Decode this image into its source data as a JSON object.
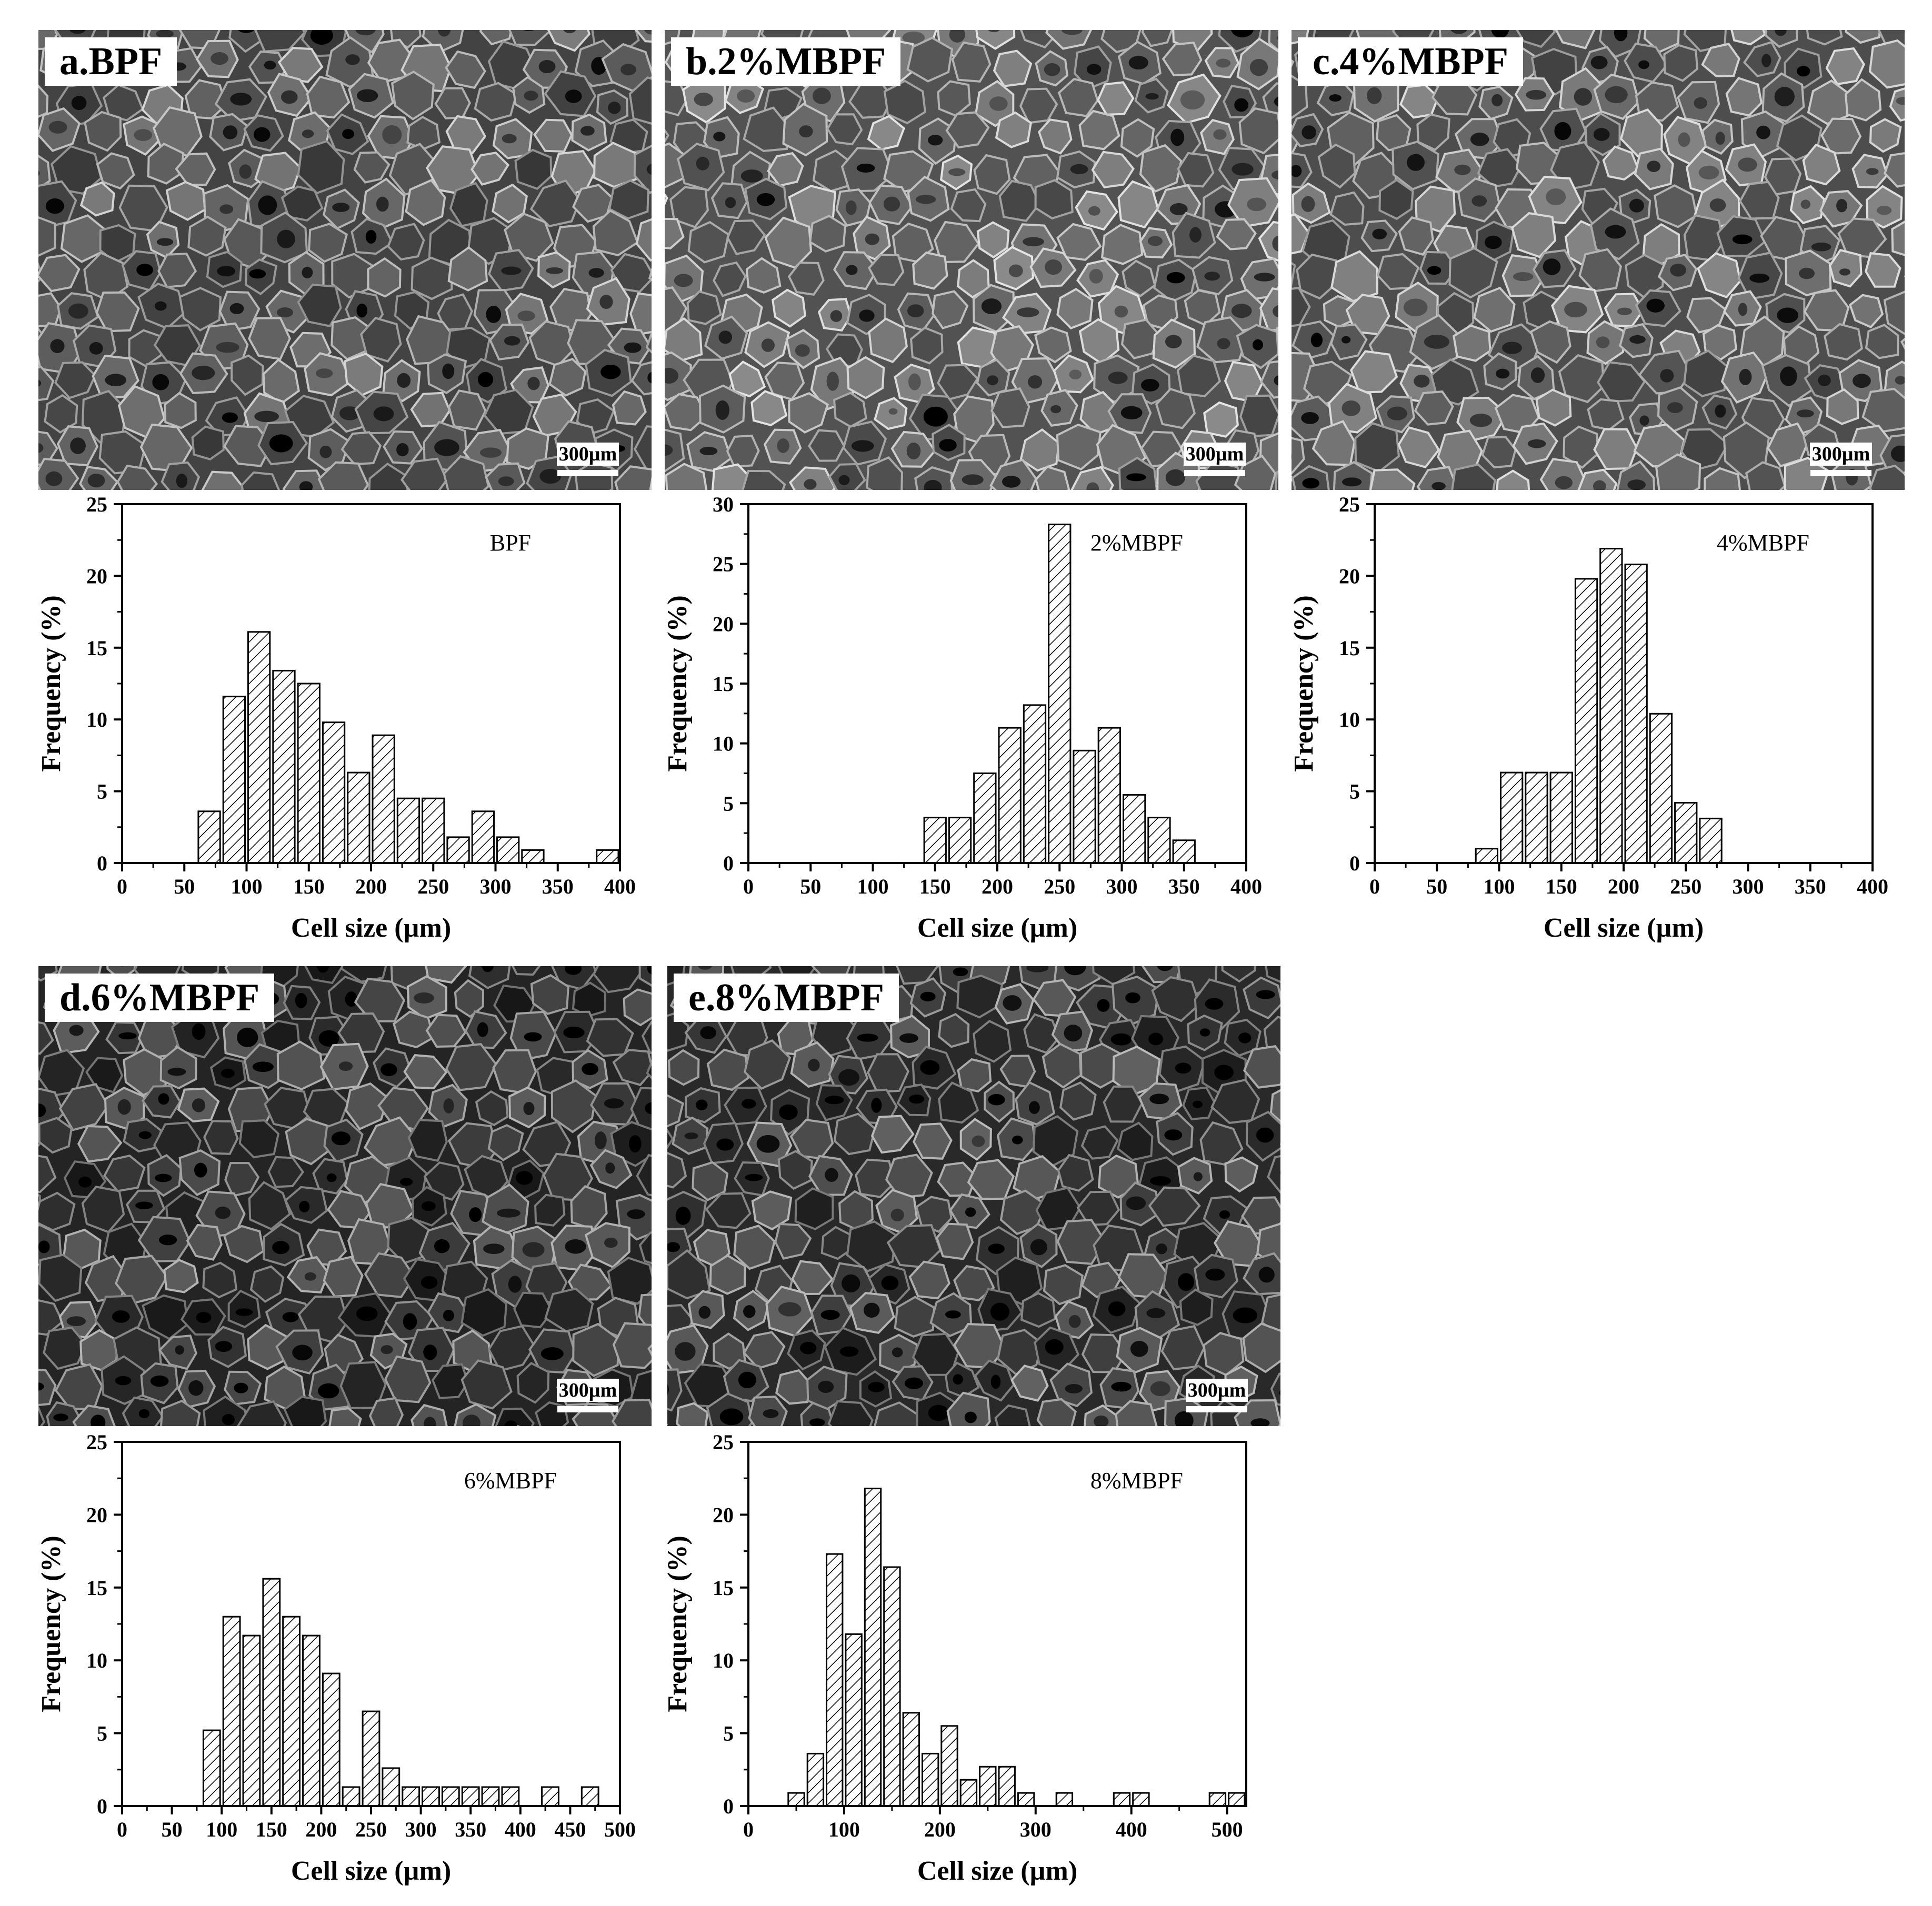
{
  "panels": [
    {
      "id": "a",
      "label": "a.BPF",
      "scale_text": "300µm",
      "tone": 0.36
    },
    {
      "id": "b",
      "label": "b.2%MBPF",
      "scale_text": "300µm",
      "tone": 0.42
    },
    {
      "id": "c",
      "label": "c.4%MBPF",
      "scale_text": "300µm",
      "tone": 0.4
    },
    {
      "id": "d",
      "label": "d.6%MBPF",
      "scale_text": "300µm",
      "tone": 0.24
    },
    {
      "id": "e",
      "label": "e.8%MBPF",
      "scale_text": "300µm",
      "tone": 0.26
    }
  ],
  "chart_data": [
    {
      "type": "bar",
      "legend": "BPF",
      "xlabel": "Cell size (µm)",
      "ylabel": "Frequency (%)",
      "xlim": [
        0,
        400
      ],
      "ylim": [
        0,
        25
      ],
      "xticks": [
        0,
        50,
        100,
        150,
        200,
        250,
        300,
        350,
        400
      ],
      "yticks": [
        0,
        5,
        10,
        15,
        20,
        25
      ],
      "bin_width": 20,
      "x": [
        70,
        90,
        110,
        130,
        150,
        170,
        190,
        210,
        230,
        250,
        270,
        290,
        310,
        330,
        390
      ],
      "values": [
        3.6,
        11.6,
        16.1,
        13.4,
        12.5,
        9.8,
        6.3,
        8.9,
        4.5,
        4.5,
        1.8,
        3.6,
        1.8,
        0.9,
        0.9
      ]
    },
    {
      "type": "bar",
      "legend": "2%MBPF",
      "xlabel": "Cell size (µm)",
      "ylabel": "Frequency (%)",
      "xlim": [
        0,
        400
      ],
      "ylim": [
        0,
        30
      ],
      "xticks": [
        0,
        50,
        100,
        150,
        200,
        250,
        300,
        350,
        400
      ],
      "yticks": [
        0,
        5,
        10,
        15,
        20,
        25,
        30
      ],
      "bin_width": 20,
      "x": [
        150,
        170,
        190,
        210,
        230,
        250,
        270,
        290,
        310,
        330,
        350
      ],
      "values": [
        3.8,
        3.8,
        7.5,
        11.3,
        13.2,
        28.3,
        9.4,
        11.3,
        5.7,
        3.8,
        1.9
      ]
    },
    {
      "type": "bar",
      "legend": "4%MBPF",
      "xlabel": "Cell size (µm)",
      "ylabel": "Frequency (%)",
      "xlim": [
        0,
        400
      ],
      "ylim": [
        0,
        25
      ],
      "xticks": [
        0,
        50,
        100,
        150,
        200,
        250,
        300,
        350,
        400
      ],
      "yticks": [
        0,
        5,
        10,
        15,
        20,
        25
      ],
      "bin_width": 20,
      "x": [
        90,
        110,
        130,
        150,
        170,
        190,
        210,
        230,
        250,
        270
      ],
      "values": [
        1.0,
        6.3,
        6.3,
        6.3,
        19.8,
        21.9,
        20.8,
        10.4,
        4.2,
        3.1
      ]
    },
    {
      "type": "bar",
      "legend": "6%MBPF",
      "xlabel": "Cell size (µm)",
      "ylabel": "Frequency (%)",
      "xlim": [
        0,
        500
      ],
      "ylim": [
        0,
        25
      ],
      "xticks": [
        0,
        50,
        100,
        150,
        200,
        250,
        300,
        350,
        400,
        450,
        500
      ],
      "yticks": [
        0,
        5,
        10,
        15,
        20,
        25
      ],
      "bin_width": 20,
      "x": [
        90,
        110,
        130,
        150,
        170,
        190,
        210,
        230,
        250,
        270,
        290,
        310,
        330,
        350,
        370,
        390,
        430,
        470
      ],
      "values": [
        5.2,
        13.0,
        11.7,
        15.6,
        13.0,
        11.7,
        9.1,
        1.3,
        6.5,
        2.6,
        1.3,
        1.3,
        1.3,
        1.3,
        1.3,
        1.3,
        1.3,
        1.3
      ]
    },
    {
      "type": "bar",
      "legend": "8%MBPF",
      "xlabel": "Cell size (µm)",
      "ylabel": "Frequency (%)",
      "xlim": [
        0,
        520
      ],
      "ylim": [
        0,
        25
      ],
      "xticks": [
        0,
        100,
        200,
        300,
        400,
        500
      ],
      "yticks": [
        0,
        5,
        10,
        15,
        20,
        25
      ],
      "bin_width": 20,
      "x": [
        50,
        70,
        90,
        110,
        130,
        150,
        170,
        190,
        210,
        230,
        250,
        270,
        290,
        330,
        390,
        410,
        490,
        510
      ],
      "values": [
        0.9,
        3.6,
        17.3,
        11.8,
        21.8,
        16.4,
        6.4,
        3.6,
        5.5,
        1.8,
        2.7,
        2.7,
        0.9,
        0.9,
        0.9,
        0.9,
        0.9,
        0.9
      ]
    }
  ]
}
